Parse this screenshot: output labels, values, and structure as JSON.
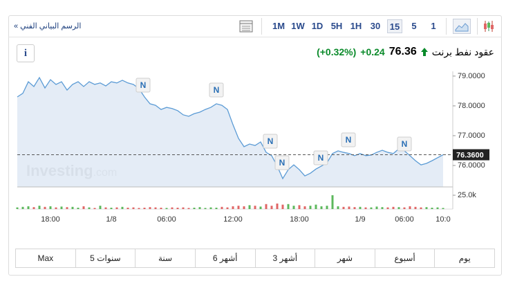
{
  "toolbar": {
    "link": "الرسم البياني الفني »",
    "intervals": [
      "1M",
      "1W",
      "1D",
      "5H",
      "1H",
      "30",
      "15",
      "5",
      "1"
    ],
    "active_interval": "15"
  },
  "header": {
    "info": "i",
    "title": "عقود نفط برنت",
    "price": "76.36",
    "change": "+0.24",
    "change_pct": "(+0.32%)"
  },
  "ranges": [
    "Max",
    "5 سنوات",
    "سنة",
    "6 أشهر",
    "3 أشهر",
    "شهر",
    "أسبوع",
    "يوم"
  ],
  "chart_data": {
    "type": "line",
    "color": "#5b9bd5",
    "fill": "#dfe9f4",
    "watermark": "Investing",
    "watermark_suffix": ".com",
    "categories": [
      null,
      null,
      null,
      null,
      null,
      null,
      "18:00",
      null,
      null,
      null,
      null,
      null,
      null,
      null,
      null,
      null,
      null,
      "1/8",
      null,
      null,
      null,
      null,
      null,
      null,
      null,
      null,
      null,
      "06:00",
      null,
      null,
      null,
      null,
      null,
      null,
      null,
      null,
      null,
      null,
      null,
      "12:00",
      null,
      null,
      null,
      null,
      null,
      null,
      null,
      null,
      null,
      null,
      null,
      "18:00",
      null,
      null,
      null,
      null,
      null,
      null,
      null,
      null,
      null,
      null,
      "1/9",
      null,
      null,
      null,
      null,
      null,
      null,
      null,
      "06:00",
      null,
      null,
      null,
      null,
      null,
      null,
      "10:0"
    ],
    "values": [
      78.3,
      78.42,
      78.81,
      78.65,
      78.95,
      78.6,
      78.88,
      78.72,
      78.81,
      78.53,
      78.72,
      78.81,
      78.65,
      78.81,
      78.72,
      78.77,
      78.67,
      78.81,
      78.77,
      78.86,
      78.77,
      78.72,
      78.58,
      78.3,
      78.07,
      78.02,
      77.88,
      77.95,
      77.91,
      77.84,
      77.7,
      77.65,
      77.74,
      77.79,
      77.88,
      77.95,
      78.07,
      78.02,
      77.88,
      77.37,
      76.91,
      76.63,
      76.72,
      76.67,
      76.79,
      76.44,
      76.33,
      75.98,
      75.56,
      75.86,
      76.02,
      75.86,
      75.65,
      75.74,
      75.88,
      75.98,
      76.09,
      76.4,
      76.49,
      76.44,
      76.4,
      76.33,
      76.4,
      76.33,
      76.35,
      76.44,
      76.51,
      76.44,
      76.4,
      76.56,
      76.49,
      76.33,
      76.16,
      76.02,
      76.07,
      76.16,
      76.26,
      76.36
    ],
    "ylim": [
      75.28,
      79.16
    ],
    "yticks": [
      {
        "value": 79,
        "label": "79.0000"
      },
      {
        "value": 78,
        "label": "78.0000"
      },
      {
        "value": 77,
        "label": "77.0000"
      },
      {
        "value": 76,
        "label": "76.0000"
      }
    ],
    "current": {
      "value": 76.36,
      "label": "76.3600"
    },
    "markers": [
      "N",
      "N",
      "N",
      "N",
      "N",
      "N",
      "N"
    ],
    "volume": {
      "up_color": "#5cb85c",
      "down_color": "#e06666",
      "ylim": [
        0,
        40000
      ],
      "yticks": [
        {
          "value": 25000,
          "label": "25.0k"
        }
      ],
      "values": [
        3000,
        4000,
        5000,
        3500,
        6000,
        4000,
        5000,
        3000,
        4500,
        3500,
        4000,
        2500,
        5000,
        3000,
        2000,
        6000,
        3000,
        2500,
        3000,
        4000,
        2500,
        3000,
        2000,
        2500,
        3500,
        3000,
        2500,
        2000,
        3000,
        2500,
        3000,
        2000,
        2500,
        3500,
        2000,
        3000,
        2500,
        4000,
        3000,
        5000,
        6000,
        5000,
        7000,
        6000,
        4500,
        9000,
        6000,
        10000,
        8000,
        9000,
        6000,
        7000,
        5000,
        6000,
        8000,
        5000,
        6000,
        25000,
        5000,
        4000,
        4500,
        3500,
        4000,
        3000,
        3000,
        4500,
        3500,
        3000,
        4000,
        3500,
        3000,
        5000,
        4000,
        3000,
        3500,
        2500,
        3000,
        2000
      ]
    }
  }
}
